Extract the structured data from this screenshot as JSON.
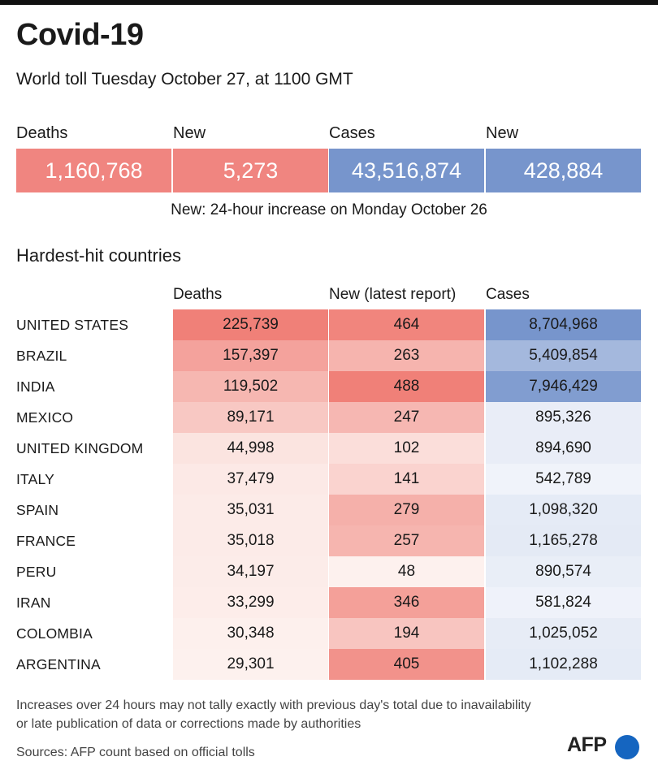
{
  "header": {
    "title": "Covid-19",
    "subtitle": "World toll Tuesday October 27,  at 1100 GMT"
  },
  "summary": {
    "labels": [
      "Deaths",
      "New",
      "Cases",
      "New"
    ],
    "values": [
      "1,160,768",
      "5,273",
      "43,516,874",
      "428,884"
    ],
    "note": "New: 24-hour increase on Monday October 26"
  },
  "colors": {
    "deaths": "#f08580",
    "cases": "#7795cc"
  },
  "chart_data": {
    "type": "table",
    "title": "Hardest-hit countries",
    "columns": [
      "Deaths",
      "New (latest report)",
      "Cases"
    ],
    "rows": [
      {
        "country": "UNITED STATES",
        "deaths": 225739,
        "new": 464,
        "cases": 8704968,
        "deaths_text": "225,739",
        "new_text": "464",
        "cases_text": "8,704,968"
      },
      {
        "country": "BRAZIL",
        "deaths": 157397,
        "new": 263,
        "cases": 5409854,
        "deaths_text": "157,397",
        "new_text": "263",
        "cases_text": "5,409,854"
      },
      {
        "country": "INDIA",
        "deaths": 119502,
        "new": 488,
        "cases": 7946429,
        "deaths_text": "119,502",
        "new_text": "488",
        "cases_text": "7,946,429"
      },
      {
        "country": "MEXICO",
        "deaths": 89171,
        "new": 247,
        "cases": 895326,
        "deaths_text": "89,171",
        "new_text": "247",
        "cases_text": "895,326"
      },
      {
        "country": "UNITED KINGDOM",
        "deaths": 44998,
        "new": 102,
        "cases": 894690,
        "deaths_text": "44,998",
        "new_text": "102",
        "cases_text": "894,690"
      },
      {
        "country": "ITALY",
        "deaths": 37479,
        "new": 141,
        "cases": 542789,
        "deaths_text": "37,479",
        "new_text": "141",
        "cases_text": "542,789"
      },
      {
        "country": "SPAIN",
        "deaths": 35031,
        "new": 279,
        "cases": 1098320,
        "deaths_text": "35,031",
        "new_text": "279",
        "cases_text": "1,098,320"
      },
      {
        "country": "FRANCE",
        "deaths": 35018,
        "new": 257,
        "cases": 1165278,
        "deaths_text": "35,018",
        "new_text": "257",
        "cases_text": "1,165,278"
      },
      {
        "country": "PERU",
        "deaths": 34197,
        "new": 48,
        "cases": 890574,
        "deaths_text": "34,197",
        "new_text": "48",
        "cases_text": "890,574"
      },
      {
        "country": "IRAN",
        "deaths": 33299,
        "new": 346,
        "cases": 581824,
        "deaths_text": "33,299",
        "new_text": "346",
        "cases_text": "581,824"
      },
      {
        "country": "COLOMBIA",
        "deaths": 30348,
        "new": 194,
        "cases": 1025052,
        "deaths_text": "30,348",
        "new_text": "194",
        "cases_text": "1,025,052"
      },
      {
        "country": "ARGENTINA",
        "deaths": 29301,
        "new": 405,
        "cases": 1102288,
        "deaths_text": "29,301",
        "new_text": "405",
        "cases_text": "1,102,288"
      }
    ]
  },
  "footer": {
    "disclaimer_line1": "Increases over 24 hours may not tally exactly with previous day's total due to inavailability",
    "disclaimer_line2": "or late publication of data or corrections made by authorities",
    "sources": "Sources: AFP count based on official tolls",
    "logo": "AFP"
  }
}
